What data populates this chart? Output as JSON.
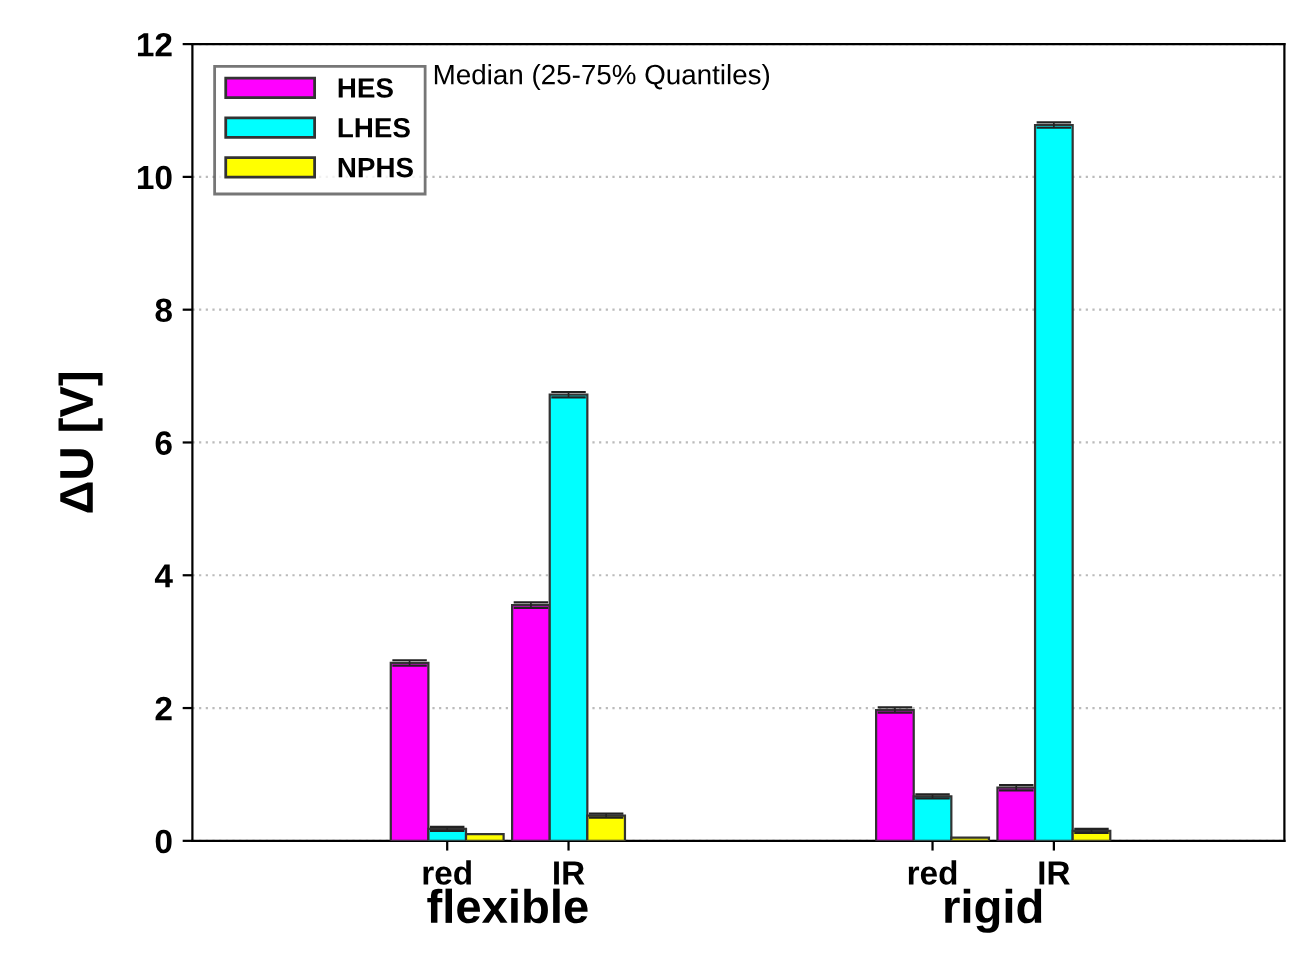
{
  "chart_data": {
    "type": "bar",
    "ylabel": "ΔU [V]",
    "categories": [
      "red",
      "IR",
      null,
      null,
      "red",
      "IR"
    ],
    "series": [
      {
        "name": "HES",
        "color": "#ff00ff",
        "values": [
          2.68,
          3.55,
          null,
          null,
          1.97,
          0.8
        ],
        "errors": [
          0.04,
          0.04,
          null,
          null,
          0.04,
          0.04
        ]
      },
      {
        "name": "LHES",
        "color": "#00ffff",
        "values": [
          0.18,
          6.72,
          null,
          null,
          0.67,
          10.78
        ],
        "errors": [
          0.03,
          0.04,
          null,
          null,
          0.03,
          0.04
        ]
      },
      {
        "name": "NPHS",
        "color": "#ffff00",
        "values": [
          0.1,
          0.38,
          null,
          null,
          0.05,
          0.15
        ],
        "errors": [
          null,
          0.03,
          null,
          null,
          null,
          0.03
        ]
      }
    ],
    "ylim": [
      0,
      12
    ],
    "yticks": [
      0,
      2,
      4,
      6,
      8,
      10,
      12
    ],
    "grid": "y",
    "legend": "top left",
    "annotations": [
      "Median (25-75% Quantiles)",
      "flexible",
      "rigid"
    ]
  }
}
